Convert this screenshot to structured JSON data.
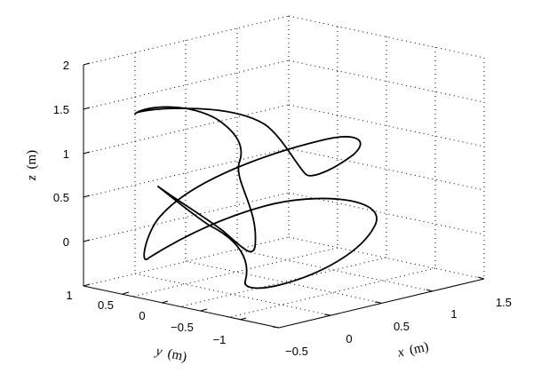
{
  "chart_data": {
    "type": "line3d",
    "title": "",
    "xlabel": {
      "var": "x",
      "unit": "(m)"
    },
    "ylabel": {
      "var": "y",
      "unit": "(m)"
    },
    "zlabel": {
      "var": "z",
      "unit": "(m)"
    },
    "xlim": [
      -0.5,
      1.5
    ],
    "ylim": [
      -1.5,
      1
    ],
    "zlim": [
      -0.5,
      2
    ],
    "xticks": [
      "−0.5",
      "0",
      "0.5",
      "1",
      "1.5"
    ],
    "yticks": [
      "1",
      "0.5",
      "0",
      "−0.5",
      "−1"
    ],
    "zticks": [
      "0",
      "0.5",
      "1",
      "1.5",
      "2"
    ],
    "grid": true,
    "series": [
      {
        "line_color": "#000000",
        "note_points_xyz": []
      }
    ]
  }
}
